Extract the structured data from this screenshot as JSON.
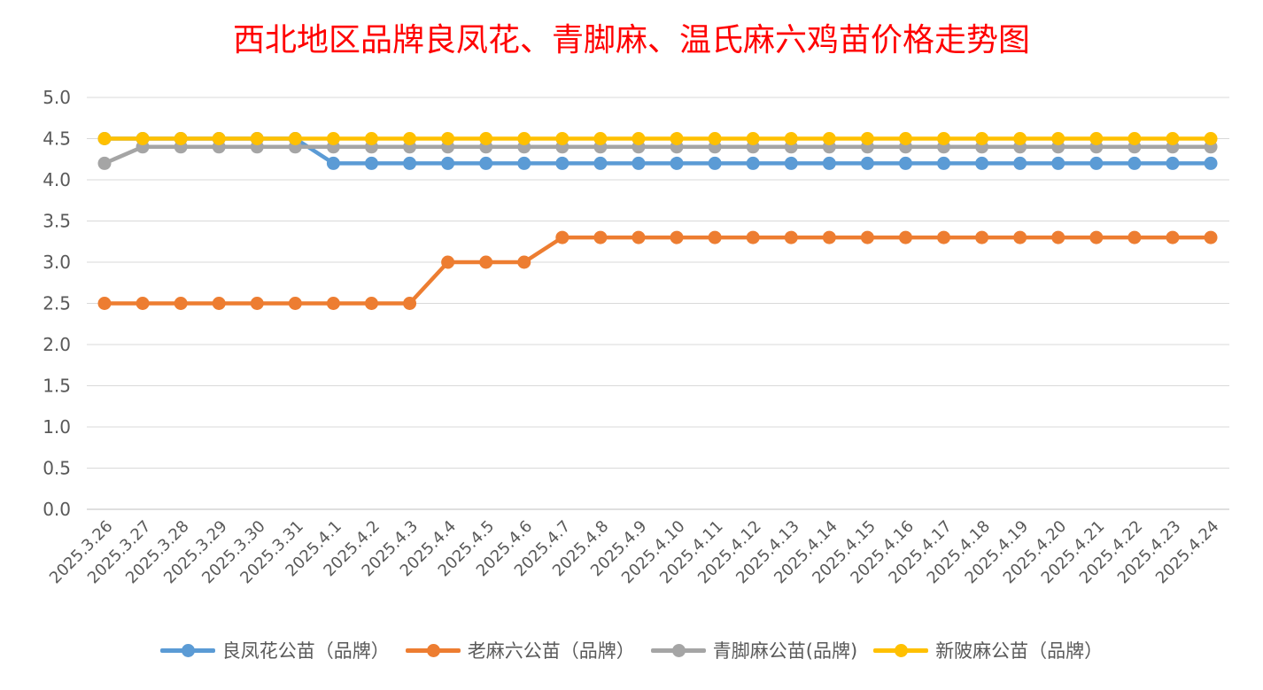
{
  "chart_data": {
    "type": "line",
    "title": "西北地区品牌良凤花、青脚麻、温氏麻六鸡苗价格走势图",
    "xlabel": "",
    "ylabel": "",
    "ylim": [
      0,
      5
    ],
    "ytick_step": 0.5,
    "yticks": [
      "0.0",
      "0.5",
      "1.0",
      "1.5",
      "2.0",
      "2.5",
      "3.0",
      "3.5",
      "4.0",
      "4.5",
      "5.0"
    ],
    "grid": true,
    "legend_position": "bottom",
    "categories": [
      "2025.3.26",
      "2025.3.27",
      "2025.3.28",
      "2025.3.29",
      "2025.3.30",
      "2025.3.31",
      "2025.4.1",
      "2025.4.2",
      "2025.4.3",
      "2025.4.4",
      "2025.4.5",
      "2025.4.6",
      "2025.4.7",
      "2025.4.8",
      "2025.4.9",
      "2025.4.10",
      "2025.4.11",
      "2025.4.12",
      "2025.4.13",
      "2025.4.14",
      "2025.4.15",
      "2025.4.16",
      "2025.4.17",
      "2025.4.18",
      "2025.4.19",
      "2025.4.20",
      "2025.4.21",
      "2025.4.22",
      "2025.4.23",
      "2025.4.24"
    ],
    "series": [
      {
        "name": "良凤花公苗（品牌）",
        "color": "#5b9bd5",
        "values": [
          4.5,
          4.5,
          4.5,
          4.5,
          4.5,
          4.5,
          4.2,
          4.2,
          4.2,
          4.2,
          4.2,
          4.2,
          4.2,
          4.2,
          4.2,
          4.2,
          4.2,
          4.2,
          4.2,
          4.2,
          4.2,
          4.2,
          4.2,
          4.2,
          4.2,
          4.2,
          4.2,
          4.2,
          4.2,
          4.2
        ]
      },
      {
        "name": "老麻六公苗（品牌）",
        "color": "#ed7d31",
        "values": [
          2.5,
          2.5,
          2.5,
          2.5,
          2.5,
          2.5,
          2.5,
          2.5,
          2.5,
          3.0,
          3.0,
          3.0,
          3.3,
          3.3,
          3.3,
          3.3,
          3.3,
          3.3,
          3.3,
          3.3,
          3.3,
          3.3,
          3.3,
          3.3,
          3.3,
          3.3,
          3.3,
          3.3,
          3.3,
          3.3
        ]
      },
      {
        "name": "青脚麻公苗(品牌)",
        "color": "#a5a5a5",
        "values": [
          4.2,
          4.4,
          4.4,
          4.4,
          4.4,
          4.4,
          4.4,
          4.4,
          4.4,
          4.4,
          4.4,
          4.4,
          4.4,
          4.4,
          4.4,
          4.4,
          4.4,
          4.4,
          4.4,
          4.4,
          4.4,
          4.4,
          4.4,
          4.4,
          4.4,
          4.4,
          4.4,
          4.4,
          4.4,
          4.4
        ]
      },
      {
        "name": "新陂麻公苗（品牌）",
        "color": "#ffc000",
        "values": [
          4.5,
          4.5,
          4.5,
          4.5,
          4.5,
          4.5,
          4.5,
          4.5,
          4.5,
          4.5,
          4.5,
          4.5,
          4.5,
          4.5,
          4.5,
          4.5,
          4.5,
          4.5,
          4.5,
          4.5,
          4.5,
          4.5,
          4.5,
          4.5,
          4.5,
          4.5,
          4.5,
          4.5,
          4.5,
          4.5
        ]
      }
    ]
  }
}
